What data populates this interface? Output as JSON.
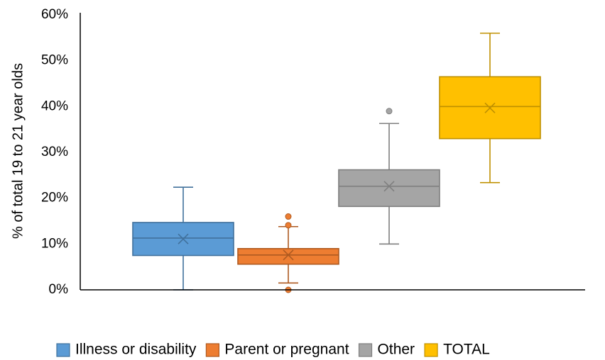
{
  "chart_data": {
    "type": "box",
    "title": "",
    "xlabel": "",
    "ylabel": "% of total 19 to 21 year olds",
    "ylim": [
      0,
      60
    ],
    "y_ticks": [
      "0%",
      "10%",
      "20%",
      "30%",
      "40%",
      "50%",
      "60%"
    ],
    "y_tick_values": [
      0,
      10,
      20,
      30,
      40,
      50,
      60
    ],
    "grid": false,
    "legend_position": "bottom",
    "series": [
      {
        "name": "Illness or disability",
        "color": "#5B9BD5",
        "edge_color": "#41719C",
        "min": 0,
        "q1": 7.5,
        "median": 11.3,
        "q3": 14.7,
        "max": 22.4,
        "mean": 11.1,
        "outliers": []
      },
      {
        "name": "Parent or pregnant",
        "color": "#ED7D31",
        "edge_color": "#AE5A21",
        "min": 1.5,
        "q1": 5.6,
        "median": 7.6,
        "q3": 9.0,
        "max": 13.8,
        "mean": 7.6,
        "outliers": [
          0,
          14.1,
          16.0
        ]
      },
      {
        "name": "Other",
        "color": "#A5A5A5",
        "edge_color": "#7F7F7F",
        "min": 10.0,
        "q1": 18.2,
        "median": 22.6,
        "q3": 26.2,
        "max": 36.3,
        "mean": 22.6,
        "outliers": [
          39.0
        ]
      },
      {
        "name": "TOTAL",
        "color": "#FFC000",
        "edge_color": "#BF9000",
        "min": 23.4,
        "q1": 33.0,
        "median": 40.0,
        "q3": 46.5,
        "max": 56.0,
        "mean": 39.7,
        "outliers": []
      }
    ]
  }
}
